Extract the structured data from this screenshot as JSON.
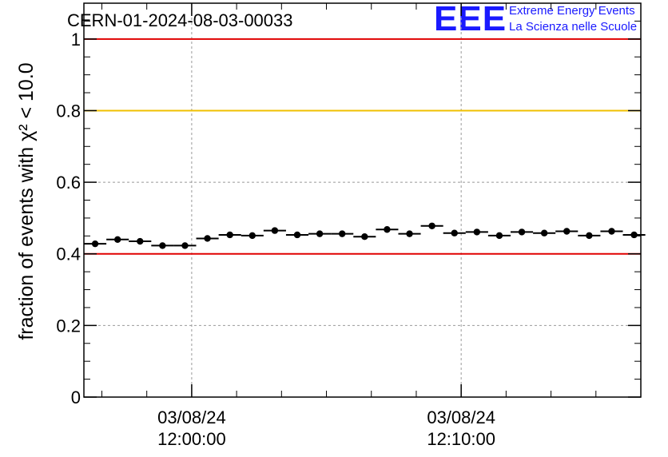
{
  "header": {
    "run_title": "CERN-01-2024-08-03-00033",
    "logo_text": "EEE",
    "logo_line1": "Extreme Energy Events",
    "logo_line2": "La Scienza nelle Scuole"
  },
  "colors": {
    "logo": "#1a1aff",
    "red_line": "#e00000",
    "yellow_line": "#f0c000",
    "grid": "#999999",
    "marker": "#000000"
  },
  "chart_data": {
    "type": "scatter",
    "title": "CERN-01-2024-08-03-00033",
    "xlabel": "",
    "ylabel": "fraction of events with χ² < 10.0",
    "ylim": [
      0,
      1.1
    ],
    "yticks": [
      0,
      0.2,
      0.4,
      0.6,
      0.8,
      1
    ],
    "ytick_labels": [
      "0",
      "0.2",
      "0.4",
      "0.6",
      "0.8",
      "1"
    ],
    "xlim": [
      "2024-08-03 11:56:00",
      "2024-08-03 12:16:40"
    ],
    "xticks": [
      "2024-08-03 12:00:00",
      "2024-08-03 12:10:00"
    ],
    "xtick_labels": [
      [
        "03/08/24",
        "12:00:00"
      ],
      [
        "03/08/24",
        "12:10:00"
      ]
    ],
    "grid": true,
    "reference_lines": [
      {
        "y": 1.0,
        "color": "#e00000"
      },
      {
        "y": 0.8,
        "color": "#f0c000"
      },
      {
        "y": 0.4,
        "color": "#e00000"
      }
    ],
    "bin_width_s": 50,
    "x": [
      "11:56:25",
      "11:57:15",
      "11:58:05",
      "11:58:55",
      "11:59:45",
      "12:00:35",
      "12:01:25",
      "12:02:15",
      "12:03:05",
      "12:03:55",
      "12:04:45",
      "12:05:35",
      "12:06:25",
      "12:07:15",
      "12:08:05",
      "12:08:55",
      "12:09:45",
      "12:10:35",
      "12:11:25",
      "12:12:15",
      "12:13:05",
      "12:13:55",
      "12:14:45",
      "12:15:35",
      "12:16:25"
    ],
    "y": [
      0.428,
      0.44,
      0.435,
      0.423,
      0.423,
      0.443,
      0.453,
      0.451,
      0.465,
      0.453,
      0.456,
      0.456,
      0.448,
      0.468,
      0.456,
      0.478,
      0.458,
      0.461,
      0.451,
      0.461,
      0.458,
      0.463,
      0.451,
      0.463,
      0.453
    ]
  }
}
